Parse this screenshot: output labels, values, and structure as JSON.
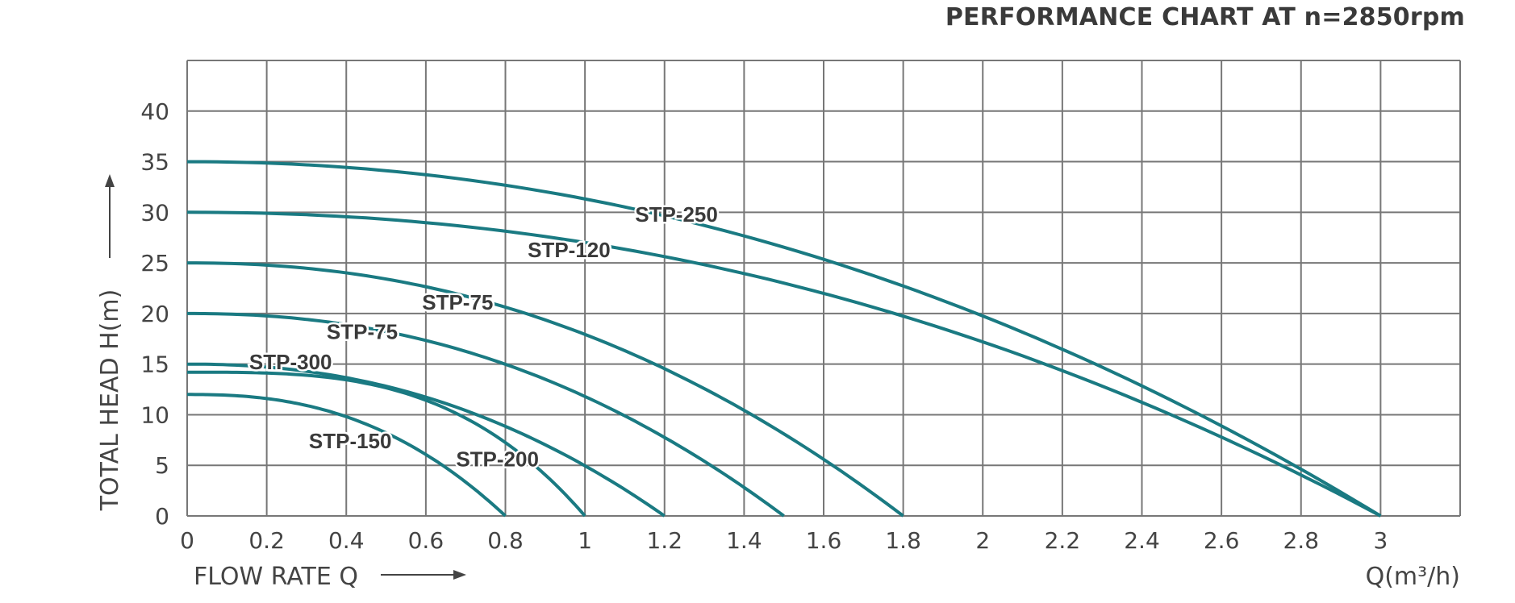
{
  "chart_data": {
    "type": "line",
    "title": "PERFORMANCE CHART AT n=2850rpm",
    "xlabel": "FLOW RATE Q",
    "xunit": "Q(m³/h)",
    "ylabel": "TOTAL HEAD H(m)",
    "xlim": [
      0,
      3.2
    ],
    "ylim": [
      0,
      45
    ],
    "xticks": [
      "0",
      "0.2",
      "0.4",
      "0.6",
      "0.8",
      "1",
      "1.2",
      "1.4",
      "1.6",
      "1.8",
      "2",
      "2.2",
      "2.4",
      "2.6",
      "2.8",
      "3"
    ],
    "yticks": [
      "0",
      "5",
      "10",
      "15",
      "20",
      "25",
      "30",
      "35",
      "40"
    ],
    "grid": true,
    "line_color": "#1a7a82",
    "series": [
      {
        "name": "STP-250",
        "h0": 35,
        "qmax": 3.0,
        "points": [
          [
            0,
            35
          ],
          [
            0.4,
            34
          ],
          [
            0.8,
            32
          ],
          [
            1.2,
            29
          ],
          [
            1.6,
            25
          ],
          [
            2.0,
            20
          ],
          [
            2.4,
            13.5
          ],
          [
            2.6,
            10
          ],
          [
            3.0,
            0
          ]
        ],
        "label_at": [
          1.23,
          29.8
        ]
      },
      {
        "name": "STP-120",
        "h0": 30,
        "qmax": 3.0,
        "points": [
          [
            0,
            30
          ],
          [
            0.4,
            29
          ],
          [
            0.8,
            27.5
          ],
          [
            1.2,
            25
          ],
          [
            1.8,
            19.5
          ],
          [
            2.2,
            14.5
          ],
          [
            2.6,
            9
          ],
          [
            3.0,
            0
          ]
        ],
        "label_at": [
          0.96,
          26.3
        ]
      },
      {
        "name": "STP-75",
        "h0": 25,
        "qmax": 1.8,
        "points": [
          [
            0,
            25
          ],
          [
            0.4,
            23.5
          ],
          [
            0.8,
            20.5
          ],
          [
            1.2,
            14.5
          ],
          [
            1.6,
            6
          ],
          [
            1.8,
            0
          ]
        ],
        "label_at": [
          0.68,
          21.1
        ]
      },
      {
        "name": "STP-75",
        "h0": 20,
        "qmax": 1.5,
        "points": [
          [
            0,
            20
          ],
          [
            0.4,
            18.5
          ],
          [
            0.8,
            14.5
          ],
          [
            1.0,
            12
          ],
          [
            1.2,
            8.5
          ],
          [
            1.5,
            0
          ]
        ],
        "label_at": [
          0.44,
          18.2
        ]
      },
      {
        "name": "STP-300",
        "h0": 15,
        "qmax": 1.2,
        "points": [
          [
            0,
            15
          ],
          [
            0.4,
            13.5
          ],
          [
            0.8,
            9
          ],
          [
            1.0,
            5
          ],
          [
            1.2,
            0
          ]
        ],
        "label_at": [
          0.26,
          15.2
        ]
      },
      {
        "name": "",
        "h0": 14.2,
        "qmax": 1.0,
        "points": [
          [
            0,
            14.2
          ],
          [
            0.4,
            12.5
          ],
          [
            0.6,
            11
          ],
          [
            0.8,
            8
          ],
          [
            1.0,
            0
          ]
        ],
        "label_at": null
      },
      {
        "name": "STP-150",
        "h0": 12,
        "qmax": 0.8,
        "points": [
          [
            0,
            12
          ],
          [
            0.2,
            11.5
          ],
          [
            0.4,
            10
          ],
          [
            0.6,
            6
          ],
          [
            0.8,
            0
          ]
        ],
        "label_at": [
          0.41,
          7.4
        ]
      },
      {
        "name": "STP-200",
        "h0": 14.2,
        "qmax": 1.0,
        "points": [],
        "label_at": [
          0.78,
          5.6
        ]
      }
    ]
  }
}
